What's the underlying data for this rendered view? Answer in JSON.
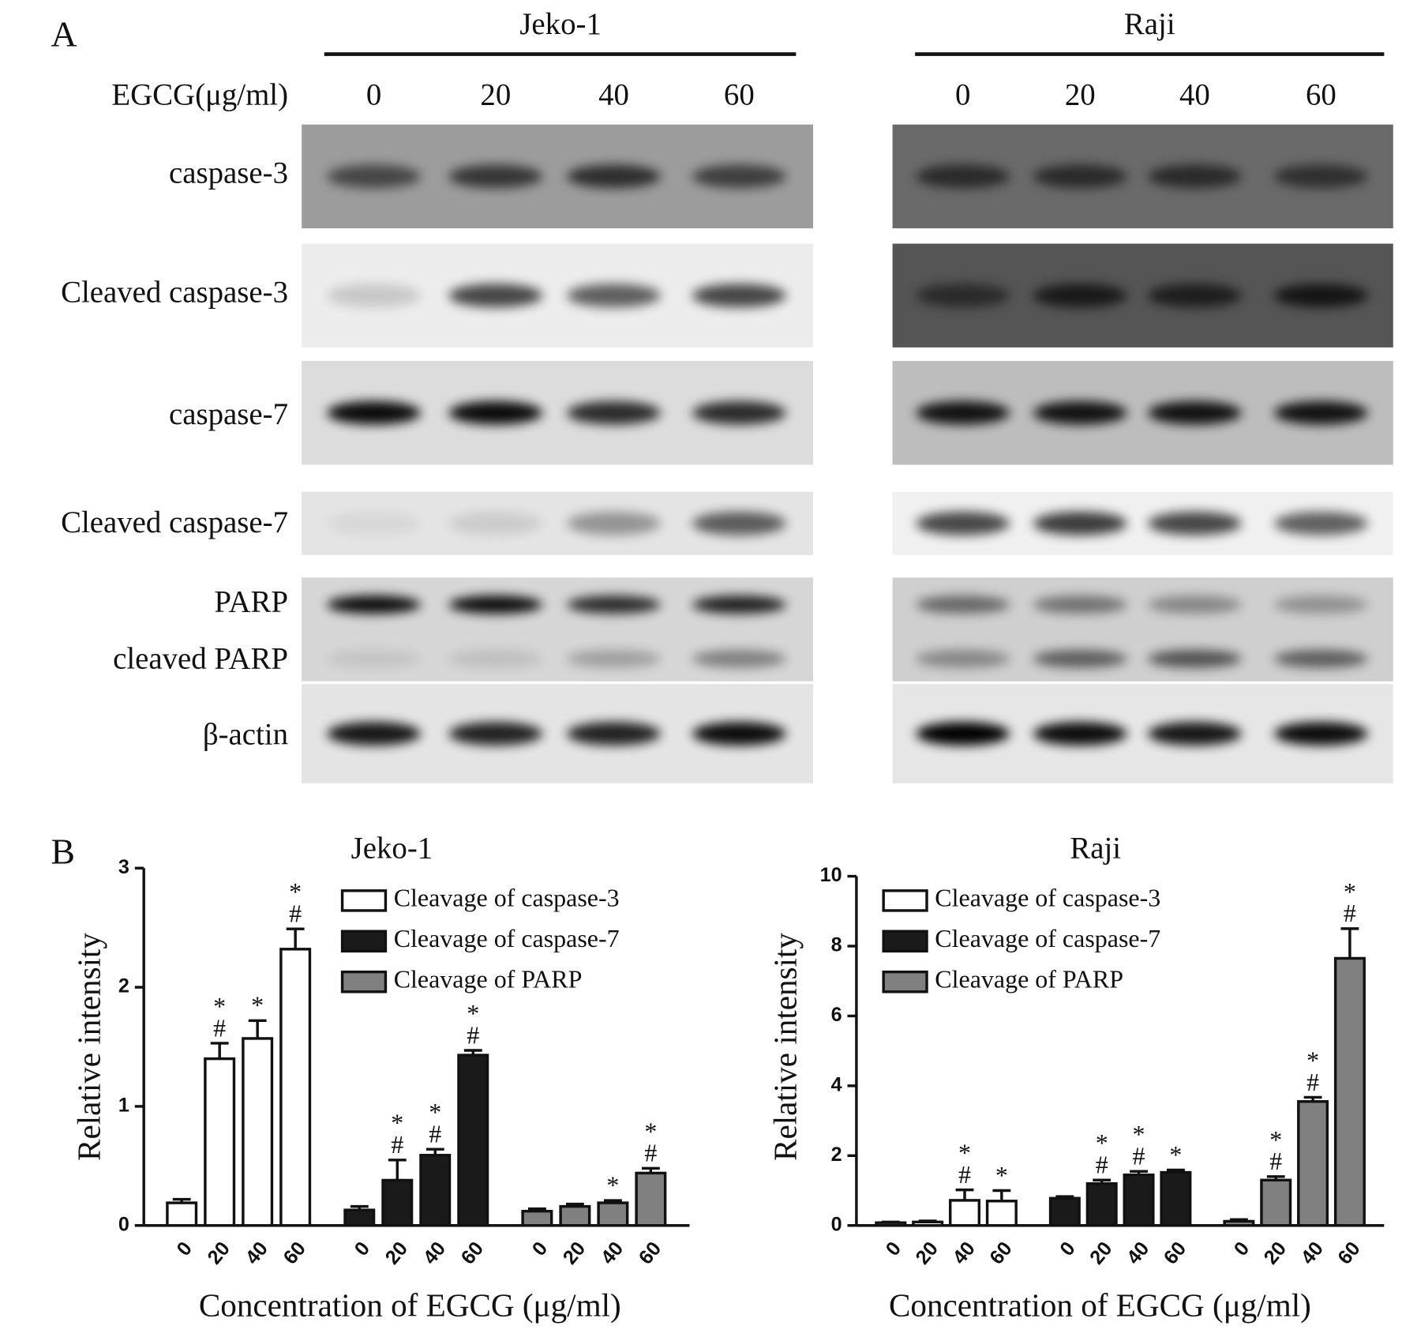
{
  "panel_a": {
    "label": "A",
    "treatment_label": "EGCG(μg/ml)",
    "blots": [
      {
        "cell_line": "Jeko-1",
        "doses": [
          "0",
          "20",
          "40",
          "60"
        ]
      },
      {
        "cell_line": "Raji",
        "doses": [
          "0",
          "20",
          "40",
          "60"
        ]
      }
    ],
    "proteins": [
      "caspase-3",
      "Cleaved caspase-3",
      "caspase-7",
      "Cleaved caspase-7",
      "PARP",
      "cleaved PARP",
      "β-actin"
    ]
  },
  "chart_data": [
    {
      "panel_label": "B",
      "type": "bar",
      "title": "Jeko-1",
      "y_label": "Relative intensity",
      "x_label": "Concentration of EGCG (μg/ml)",
      "categories": [
        "0",
        "20",
        "40",
        "60"
      ],
      "ylim": [
        0,
        3
      ],
      "yticks": [
        0,
        1,
        2,
        3
      ],
      "series": [
        {
          "name": "Cleavage of caspase-3",
          "color": "#ffffff",
          "values": [
            0.19,
            1.4,
            1.57,
            2.32
          ],
          "errors": [
            0.03,
            0.13,
            0.15,
            0.17
          ],
          "annotations": [
            null,
            [
              "#",
              "*"
            ],
            [
              "*"
            ],
            [
              "#",
              "*"
            ]
          ]
        },
        {
          "name": "Cleavage of caspase-7",
          "color": "#1a1a1a",
          "values": [
            0.13,
            0.38,
            0.59,
            1.43
          ],
          "errors": [
            0.03,
            0.17,
            0.05,
            0.04
          ],
          "annotations": [
            null,
            [
              "#",
              "*"
            ],
            [
              "#",
              "*"
            ],
            [
              "#",
              "*"
            ]
          ]
        },
        {
          "name": "Cleavage of PARP",
          "color": "#808080",
          "values": [
            0.12,
            0.16,
            0.19,
            0.44
          ],
          "errors": [
            0.02,
            0.02,
            0.02,
            0.04
          ],
          "annotations": [
            null,
            null,
            [
              "*"
            ],
            [
              "#",
              "*"
            ]
          ]
        }
      ]
    },
    {
      "type": "bar",
      "title": "Raji",
      "y_label": "Relative intensity",
      "x_label": "Concentration of EGCG (μg/ml)",
      "categories": [
        "0",
        "20",
        "40",
        "60"
      ],
      "ylim": [
        0,
        10
      ],
      "yticks": [
        0,
        2,
        4,
        6,
        8,
        10
      ],
      "series": [
        {
          "name": "Cleavage of caspase-3",
          "color": "#ffffff",
          "values": [
            0.08,
            0.1,
            0.72,
            0.7
          ],
          "errors": [
            0.02,
            0.03,
            0.3,
            0.3
          ],
          "annotations": [
            null,
            null,
            [
              "#",
              "*"
            ],
            [
              "*"
            ]
          ]
        },
        {
          "name": "Cleavage of caspase-7",
          "color": "#1a1a1a",
          "values": [
            0.78,
            1.2,
            1.45,
            1.52
          ],
          "errors": [
            0.05,
            0.1,
            0.1,
            0.07
          ],
          "annotations": [
            null,
            [
              "#",
              "*"
            ],
            [
              "#",
              "*"
            ],
            [
              "*"
            ]
          ]
        },
        {
          "name": "Cleavage of PARP",
          "color": "#808080",
          "values": [
            0.12,
            1.3,
            3.55,
            7.65
          ],
          "errors": [
            0.05,
            0.1,
            0.12,
            0.85
          ],
          "annotations": [
            null,
            [
              "#",
              "*"
            ],
            [
              "#",
              "*"
            ],
            [
              "#",
              "*"
            ]
          ]
        }
      ]
    }
  ]
}
